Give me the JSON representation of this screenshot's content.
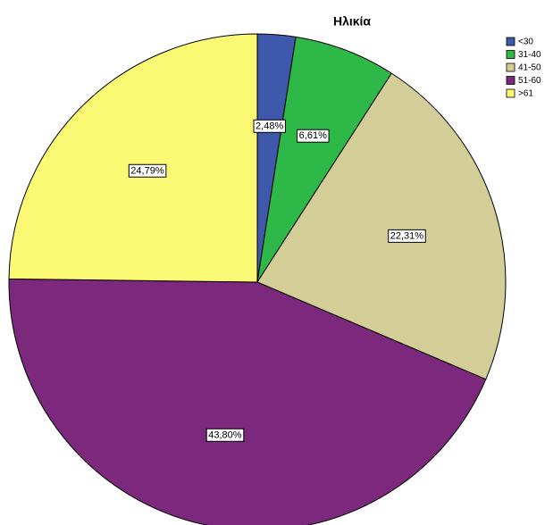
{
  "chart_data": {
    "type": "pie",
    "title": "Ηλικία",
    "categories": [
      "<30",
      "31-40",
      "41-50",
      "51-60",
      ">61"
    ],
    "values": [
      2.48,
      6.61,
      22.31,
      43.8,
      24.79
    ],
    "value_labels": [
      "2,48%",
      "6,61%",
      "22,31%",
      "43,80%",
      "24,79%"
    ],
    "colors": [
      "#3E58AC",
      "#2EB848",
      "#D3CE97",
      "#7C287D",
      "#FBF873"
    ],
    "legend": "top-right"
  }
}
